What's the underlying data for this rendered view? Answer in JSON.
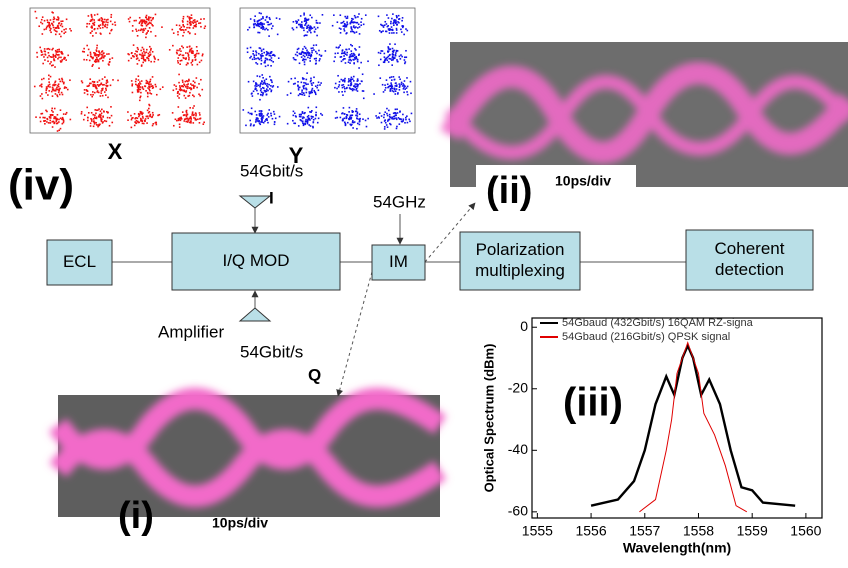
{
  "labels": {
    "iv": "(iv)",
    "ii": "(ii)",
    "i": "(i)",
    "iii": "(iii)",
    "x": "X",
    "y": "Y",
    "time_ii": "10ps/div",
    "time_i": "10ps/div",
    "i_rate": "54Gbit/s",
    "i_name": "I",
    "clock": "54GHz",
    "amplifier": "Amplifier",
    "q_rate": "54Gbit/s",
    "q_name": "Q"
  },
  "nodes": [
    {
      "lines": [
        "ECL"
      ]
    },
    {
      "lines": [
        "I/Q MOD"
      ]
    },
    {
      "lines": [
        "IM"
      ]
    },
    {
      "lines": [
        "Polarization",
        "multiplexing"
      ]
    },
    {
      "lines": [
        "Coherent",
        "detection"
      ]
    }
  ],
  "chart_data": {
    "type": "line",
    "xlabel": "Wavelength(nm)",
    "ylabel": "Optical Spectrum (dBm)",
    "xlim": [
      1554.9,
      1560.3
    ],
    "ylim": [
      -62,
      3
    ],
    "xticks": [
      1555,
      1556,
      1557,
      1558,
      1559,
      1560
    ],
    "yticks": [
      0,
      -20,
      -40,
      -60
    ],
    "series": [
      {
        "name": "54Gbaud (432Gbit/s) 16QAM RZ-signa",
        "color": "#000000",
        "x": [
          1556.0,
          1556.5,
          1556.8,
          1557.0,
          1557.2,
          1557.4,
          1557.55,
          1557.7,
          1557.8,
          1557.9,
          1558.05,
          1558.2,
          1558.4,
          1558.6,
          1558.8,
          1559.0,
          1559.2,
          1559.8
        ],
        "values": [
          -58,
          -56,
          -50,
          -40,
          -25,
          -16,
          -22,
          -10,
          -6,
          -10,
          -22,
          -17,
          -25,
          -40,
          -52,
          -53,
          -57,
          -58
        ]
      },
      {
        "name": "54Gbaud (216Gbit/s) QPSK signal",
        "color": "#e00000",
        "x": [
          1556.9,
          1557.2,
          1557.4,
          1557.5,
          1557.6,
          1557.8,
          1558.0,
          1558.1,
          1558.3,
          1558.5,
          1558.7,
          1558.9
        ],
        "values": [
          -60,
          -56,
          -40,
          -30,
          -15,
          -5,
          -15,
          -28,
          -35,
          -45,
          -58,
          -60
        ]
      }
    ]
  }
}
